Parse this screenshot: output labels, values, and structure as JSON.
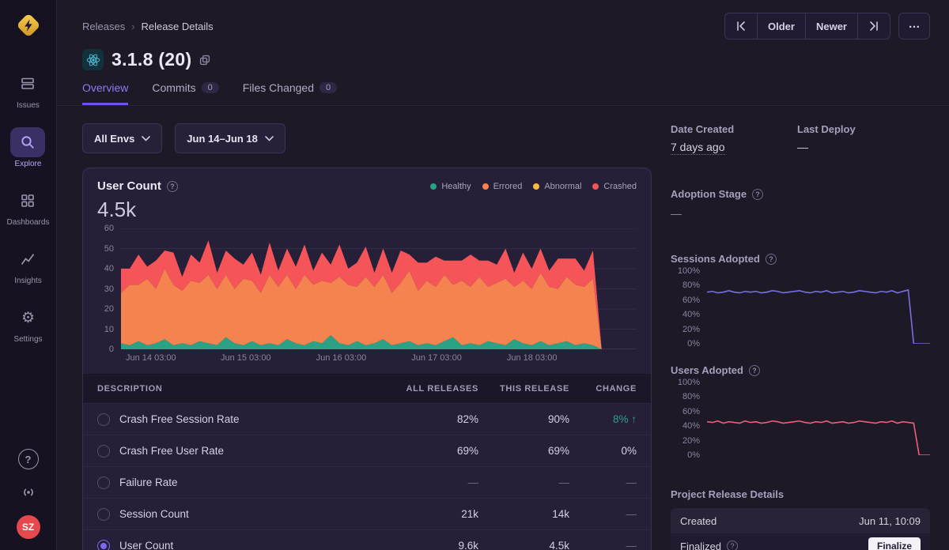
{
  "colors": {
    "accent_purple": "#6C52F4",
    "healthy_green": "#2BA185",
    "errored_orange": "#F4834F",
    "abnormal_yellow": "#F5B944",
    "crashed_red": "#F55459",
    "sessions_line_purple": "#7B6FDE",
    "users_line_pink": "#F05C7E",
    "positive_green": "#2BA185"
  },
  "sidebar": {
    "items": [
      {
        "label": "Issues"
      },
      {
        "label": "Explore"
      },
      {
        "label": "Dashboards"
      },
      {
        "label": "Insights"
      },
      {
        "label": "Settings"
      }
    ],
    "avatar_initials": "SZ"
  },
  "header": {
    "breadcrumb": {
      "parent": "Releases",
      "separator": "›",
      "current": "Release Details"
    },
    "title": "3.1.8 (20)",
    "pagination": {
      "older": "Older",
      "newer": "Newer"
    },
    "tabs": [
      {
        "label": "Overview"
      },
      {
        "label": "Commits",
        "count": "0"
      },
      {
        "label": "Files Changed",
        "count": "0"
      }
    ]
  },
  "filters": {
    "env_label": "All Envs",
    "date_label": "Jun 14–Jun 18"
  },
  "user_count_card": {
    "title": "User Count",
    "value": "4.5k"
  },
  "chart_data": [
    {
      "type": "area",
      "stacked": true,
      "grid": true,
      "title": "User Count",
      "ylim": [
        0,
        60
      ],
      "y_ticks_top_down": [
        "60",
        "50",
        "40",
        "30",
        "20",
        "10",
        "0"
      ],
      "x_ticks": [
        "Jun 14 03:00",
        "Jun 15 03:00",
        "Jun 16 03:00",
        "Jun 17 03:00",
        "Jun 18 03:00"
      ],
      "x_tick_pos": [
        0.058,
        0.242,
        0.427,
        0.612,
        0.797
      ],
      "legend_position": "top-right",
      "series": [
        {
          "name": "Healthy",
          "color": "#2BA185",
          "values": [
            3,
            2,
            4,
            2,
            3,
            5,
            2,
            3,
            2,
            4,
            3,
            2,
            6,
            3,
            2,
            4,
            2,
            3,
            2,
            5,
            3,
            2,
            4,
            3,
            7,
            3,
            2,
            4,
            2,
            3,
            5,
            2,
            3,
            4,
            2,
            3,
            2,
            4,
            6,
            2,
            3,
            2,
            4,
            3,
            2,
            5,
            3,
            2,
            4,
            2,
            3,
            4,
            2,
            3,
            2,
            0,
            0,
            0,
            0,
            0
          ]
        },
        {
          "name": "Errored",
          "color": "#F4834F",
          "values": [
            25,
            30,
            28,
            33,
            27,
            35,
            30,
            26,
            32,
            29,
            34,
            28,
            31,
            27,
            33,
            30,
            26,
            34,
            29,
            32,
            27,
            35,
            28,
            31,
            26,
            33,
            30,
            27,
            34,
            28,
            32,
            26,
            30,
            35,
            27,
            31,
            29,
            33,
            26,
            32,
            28,
            34,
            27,
            30,
            33,
            26,
            31,
            28,
            34,
            29,
            27,
            32,
            30,
            28,
            33,
            0,
            0,
            0,
            0,
            0
          ]
        },
        {
          "name": "Abnormal",
          "color": "#F5B944",
          "values": [
            0,
            0,
            0,
            0,
            0,
            0,
            0,
            0,
            0,
            0,
            0,
            0,
            0,
            0,
            0,
            0,
            0,
            0,
            0,
            0,
            0,
            0,
            0,
            0,
            0,
            0,
            0,
            0,
            0,
            0,
            0,
            0,
            0,
            0,
            0,
            0,
            0,
            0,
            0,
            0,
            0,
            0,
            0,
            0,
            0,
            0,
            0,
            0,
            0,
            0,
            0,
            0,
            0,
            0,
            0,
            0,
            0,
            0,
            0,
            0
          ]
        },
        {
          "name": "Crashed",
          "color": "#F55459",
          "values": [
            12,
            8,
            15,
            6,
            14,
            9,
            16,
            7,
            13,
            10,
            17,
            8,
            12,
            15,
            7,
            14,
            9,
            16,
            8,
            13,
            11,
            15,
            7,
            14,
            9,
            16,
            8,
            12,
            15,
            7,
            13,
            10,
            16,
            8,
            14,
            9,
            15,
            7,
            12,
            10,
            16,
            8,
            13,
            9,
            15,
            7,
            14,
            10,
            12,
            8,
            15,
            9,
            13,
            8,
            14,
            0,
            0,
            0,
            0,
            0
          ]
        }
      ]
    },
    {
      "type": "line",
      "stacked": false,
      "grid": false,
      "title": "Sessions Adopted",
      "ylim": [
        0,
        100
      ],
      "y_ticks_top_down": [
        "100%",
        "80%",
        "60%",
        "40%",
        "20%",
        "0%"
      ],
      "series": [
        {
          "name": "Sessions Adopted",
          "color": "#7B6FDE",
          "values": [
            71,
            72,
            70,
            71,
            73,
            71,
            70,
            72,
            71,
            72,
            70,
            71,
            73,
            72,
            70,
            71,
            72,
            73,
            71,
            70,
            72,
            71,
            73,
            70,
            71,
            72,
            70,
            71,
            73,
            72,
            71,
            70,
            72,
            71,
            73,
            70,
            72,
            74,
            0,
            0,
            0,
            0
          ]
        }
      ]
    },
    {
      "type": "line",
      "stacked": false,
      "grid": false,
      "title": "Users Adopted",
      "ylim": [
        0,
        100
      ],
      "y_ticks_top_down": [
        "100%",
        "80%",
        "60%",
        "40%",
        "20%",
        "0%"
      ],
      "series": [
        {
          "name": "Users Adopted",
          "color": "#F05C7E",
          "values": [
            46,
            45,
            47,
            44,
            46,
            45,
            44,
            47,
            45,
            46,
            44,
            45,
            47,
            46,
            44,
            45,
            46,
            47,
            45,
            44,
            46,
            45,
            47,
            44,
            45,
            46,
            44,
            45,
            47,
            46,
            45,
            44,
            46,
            45,
            47,
            44,
            46,
            45,
            44,
            0,
            0,
            0
          ]
        }
      ]
    }
  ],
  "table": {
    "headers": [
      "DESCRIPTION",
      "ALL RELEASES",
      "THIS RELEASE",
      "CHANGE"
    ],
    "rows": [
      {
        "description": "Crash Free Session Rate",
        "all_releases": "82%",
        "this_release": "90%",
        "change": "8%",
        "change_up": true,
        "selected": false
      },
      {
        "description": "Crash Free User Rate",
        "all_releases": "69%",
        "this_release": "69%",
        "change": "0%",
        "change_up": false,
        "selected": false
      },
      {
        "description": "Failure Rate",
        "all_releases": "—",
        "this_release": "—",
        "change": "—",
        "change_up": false,
        "selected": false
      },
      {
        "description": "Session Count",
        "all_releases": "21k",
        "this_release": "14k",
        "change": "—",
        "change_up": false,
        "selected": false
      },
      {
        "description": "User Count",
        "all_releases": "9.6k",
        "this_release": "4.5k",
        "change": "—",
        "change_up": false,
        "selected": true
      }
    ]
  },
  "details_panel": {
    "date_created_label": "Date Created",
    "date_created_value": "7 days ago",
    "last_deploy_label": "Last Deploy",
    "last_deploy_value": "—",
    "adoption_stage_label": "Adoption Stage",
    "adoption_stage_value": "—",
    "sessions_adopted_label": "Sessions Adopted",
    "users_adopted_label": "Users Adopted",
    "project_release_details_label": "Project Release Details",
    "created_label": "Created",
    "created_value": "Jun 11, 10:09",
    "finalized_label": "Finalized",
    "finalize_button": "Finalize"
  }
}
